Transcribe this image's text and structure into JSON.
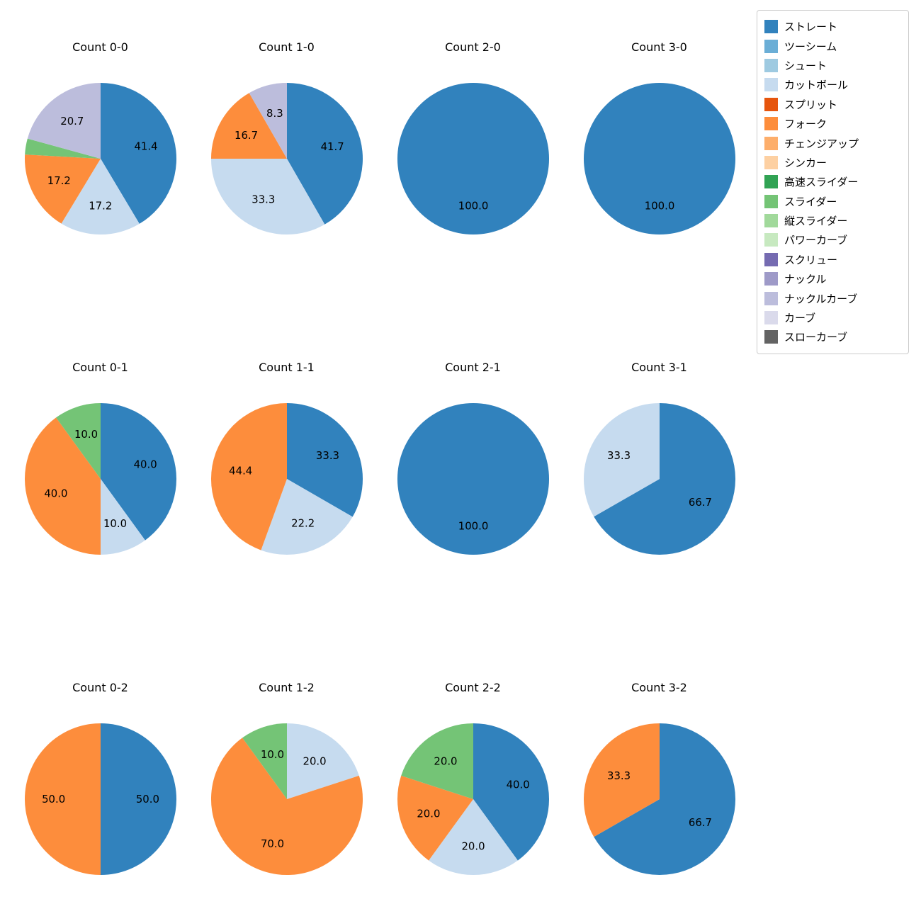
{
  "figure": {
    "background": "#ffffff",
    "text_color": "#000000"
  },
  "legend": {
    "items": [
      {
        "label": "ストレート",
        "color": "#3182bd"
      },
      {
        "label": "ツーシーム",
        "color": "#6baed6"
      },
      {
        "label": "シュート",
        "color": "#9ecae1"
      },
      {
        "label": "カットボール",
        "color": "#c6dbef"
      },
      {
        "label": "スプリット",
        "color": "#e6550d"
      },
      {
        "label": "フォーク",
        "color": "#fd8d3c"
      },
      {
        "label": "チェンジアップ",
        "color": "#fdae6b"
      },
      {
        "label": "シンカー",
        "color": "#fdd0a2"
      },
      {
        "label": "高速スライダー",
        "color": "#31a354"
      },
      {
        "label": "スライダー",
        "color": "#74c476"
      },
      {
        "label": "縦スライダー",
        "color": "#a1d99b"
      },
      {
        "label": "パワーカーブ",
        "color": "#c7e9c0"
      },
      {
        "label": "スクリュー",
        "color": "#756bb1"
      },
      {
        "label": "ナックル",
        "color": "#9e9ac8"
      },
      {
        "label": "ナックルカーブ",
        "color": "#bcbddc"
      },
      {
        "label": "カーブ",
        "color": "#dadaeb"
      },
      {
        "label": "スローカーブ",
        "color": "#636363"
      }
    ]
  },
  "chart_data": {
    "type": "pie",
    "start_angle_deg_from_top": 0,
    "direction": "clockwise",
    "pct_label_distance": 0.62,
    "grid": {
      "columns": 4,
      "rows": 3
    },
    "charts": [
      {
        "title": "Count 0-0",
        "slices": [
          {
            "label": "ストレート",
            "value": 41.4,
            "text": "41.4"
          },
          {
            "label": "カットボール",
            "value": 17.2,
            "text": "17.2"
          },
          {
            "label": "フォーク",
            "value": 17.2,
            "text": "17.2"
          },
          {
            "label": "スライダー",
            "value": 3.4,
            "text": ""
          },
          {
            "label": "ナックルカーブ",
            "value": 20.7,
            "text": "20.7"
          }
        ]
      },
      {
        "title": "Count 1-0",
        "slices": [
          {
            "label": "ストレート",
            "value": 41.7,
            "text": "41.7"
          },
          {
            "label": "カットボール",
            "value": 33.3,
            "text": "33.3"
          },
          {
            "label": "フォーク",
            "value": 16.7,
            "text": "16.7"
          },
          {
            "label": "ナックルカーブ",
            "value": 8.3,
            "text": "8.3"
          }
        ]
      },
      {
        "title": "Count 2-0",
        "slices": [
          {
            "label": "ストレート",
            "value": 100.0,
            "text": "100.0"
          }
        ]
      },
      {
        "title": "Count 3-0",
        "slices": [
          {
            "label": "ストレート",
            "value": 100.0,
            "text": "100.0"
          }
        ]
      },
      {
        "title": "Count 0-1",
        "slices": [
          {
            "label": "ストレート",
            "value": 40.0,
            "text": "40.0"
          },
          {
            "label": "カットボール",
            "value": 10.0,
            "text": "10.0"
          },
          {
            "label": "フォーク",
            "value": 40.0,
            "text": "40.0"
          },
          {
            "label": "スライダー",
            "value": 10.0,
            "text": "10.0"
          }
        ]
      },
      {
        "title": "Count 1-1",
        "slices": [
          {
            "label": "ストレート",
            "value": 33.3,
            "text": "33.3"
          },
          {
            "label": "カットボール",
            "value": 22.2,
            "text": "22.2"
          },
          {
            "label": "フォーク",
            "value": 44.4,
            "text": "44.4"
          }
        ]
      },
      {
        "title": "Count 2-1",
        "slices": [
          {
            "label": "ストレート",
            "value": 100.0,
            "text": "100.0"
          }
        ]
      },
      {
        "title": "Count 3-1",
        "slices": [
          {
            "label": "ストレート",
            "value": 66.7,
            "text": "66.7"
          },
          {
            "label": "カットボール",
            "value": 33.3,
            "text": "33.3"
          }
        ]
      },
      {
        "title": "Count 0-2",
        "slices": [
          {
            "label": "ストレート",
            "value": 50.0,
            "text": "50.0"
          },
          {
            "label": "フォーク",
            "value": 50.0,
            "text": "50.0"
          }
        ]
      },
      {
        "title": "Count 1-2",
        "slices": [
          {
            "label": "カットボール",
            "value": 20.0,
            "text": "20.0"
          },
          {
            "label": "フォーク",
            "value": 70.0,
            "text": "70.0"
          },
          {
            "label": "スライダー",
            "value": 10.0,
            "text": "10.0"
          }
        ]
      },
      {
        "title": "Count 2-2",
        "slices": [
          {
            "label": "ストレート",
            "value": 40.0,
            "text": "40.0"
          },
          {
            "label": "カットボール",
            "value": 20.0,
            "text": "20.0"
          },
          {
            "label": "フォーク",
            "value": 20.0,
            "text": "20.0"
          },
          {
            "label": "スライダー",
            "value": 20.0,
            "text": "20.0"
          }
        ]
      },
      {
        "title": "Count 3-2",
        "slices": [
          {
            "label": "ストレート",
            "value": 66.7,
            "text": "66.7"
          },
          {
            "label": "フォーク",
            "value": 33.3,
            "text": "33.3"
          }
        ]
      }
    ]
  }
}
